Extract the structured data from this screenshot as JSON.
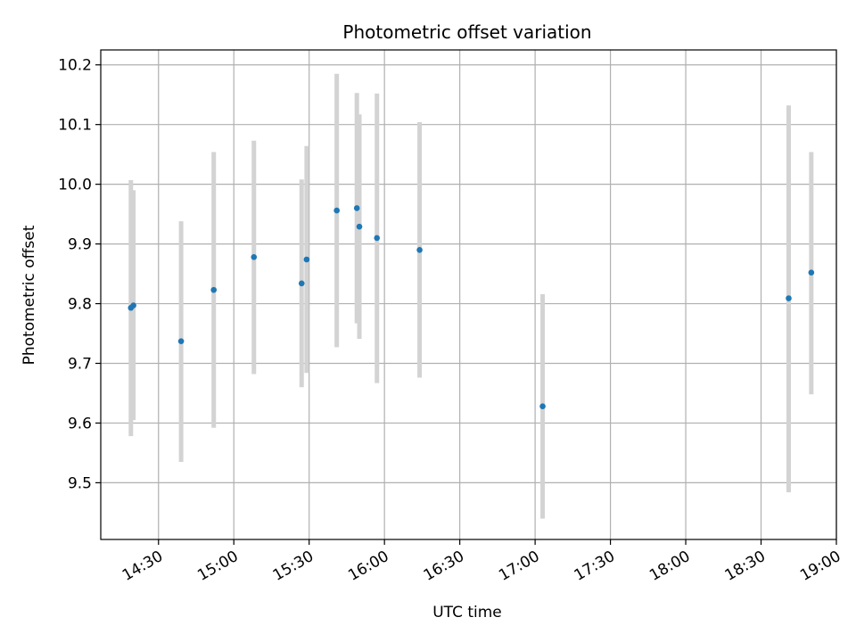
{
  "chart_data": {
    "type": "scatter",
    "title": "Photometric offset variation",
    "xlabel": "UTC time",
    "ylabel": "Photometric offset",
    "x_unit": "minutes",
    "xlim": [
      "14:07",
      "19:00"
    ],
    "ylim": [
      9.405,
      10.225
    ],
    "x_ticks": [
      "14:30",
      "15:00",
      "15:30",
      "16:00",
      "16:30",
      "17:00",
      "17:30",
      "18:00",
      "18:30",
      "19:00"
    ],
    "y_ticks": [
      "9.5",
      "9.6",
      "9.7",
      "9.8",
      "9.9",
      "10.0",
      "10.1",
      "10.2"
    ],
    "grid": true,
    "colors": {
      "points": "#1f77b4",
      "errorbars": "#d3d3d3",
      "grid": "#b0b0b0"
    },
    "points": [
      {
        "x": "14:19",
        "y": 9.793,
        "err_low": 9.578,
        "err_high": 10.007
      },
      {
        "x": "14:20",
        "y": 9.797,
        "err_low": 9.605,
        "err_high": 9.99
      },
      {
        "x": "14:39",
        "y": 9.737,
        "err_low": 9.535,
        "err_high": 9.938
      },
      {
        "x": "14:52",
        "y": 9.823,
        "err_low": 9.592,
        "err_high": 10.054
      },
      {
        "x": "15:08",
        "y": 9.878,
        "err_low": 9.682,
        "err_high": 10.073
      },
      {
        "x": "15:27",
        "y": 9.834,
        "err_low": 9.66,
        "err_high": 10.008
      },
      {
        "x": "15:29",
        "y": 9.874,
        "err_low": 9.684,
        "err_high": 10.064
      },
      {
        "x": "15:41",
        "y": 9.956,
        "err_low": 9.727,
        "err_high": 10.185
      },
      {
        "x": "15:49",
        "y": 9.96,
        "err_low": 9.767,
        "err_high": 10.153
      },
      {
        "x": "15:50",
        "y": 9.929,
        "err_low": 9.741,
        "err_high": 10.117
      },
      {
        "x": "15:57",
        "y": 9.91,
        "err_low": 9.667,
        "err_high": 10.152
      },
      {
        "x": "16:14",
        "y": 9.89,
        "err_low": 9.676,
        "err_high": 10.104
      },
      {
        "x": "17:03",
        "y": 9.628,
        "err_low": 9.44,
        "err_high": 9.816
      },
      {
        "x": "18:41",
        "y": 9.809,
        "err_low": 9.484,
        "err_high": 10.132
      },
      {
        "x": "18:50",
        "y": 9.852,
        "err_low": 9.648,
        "err_high": 10.054
      }
    ]
  }
}
